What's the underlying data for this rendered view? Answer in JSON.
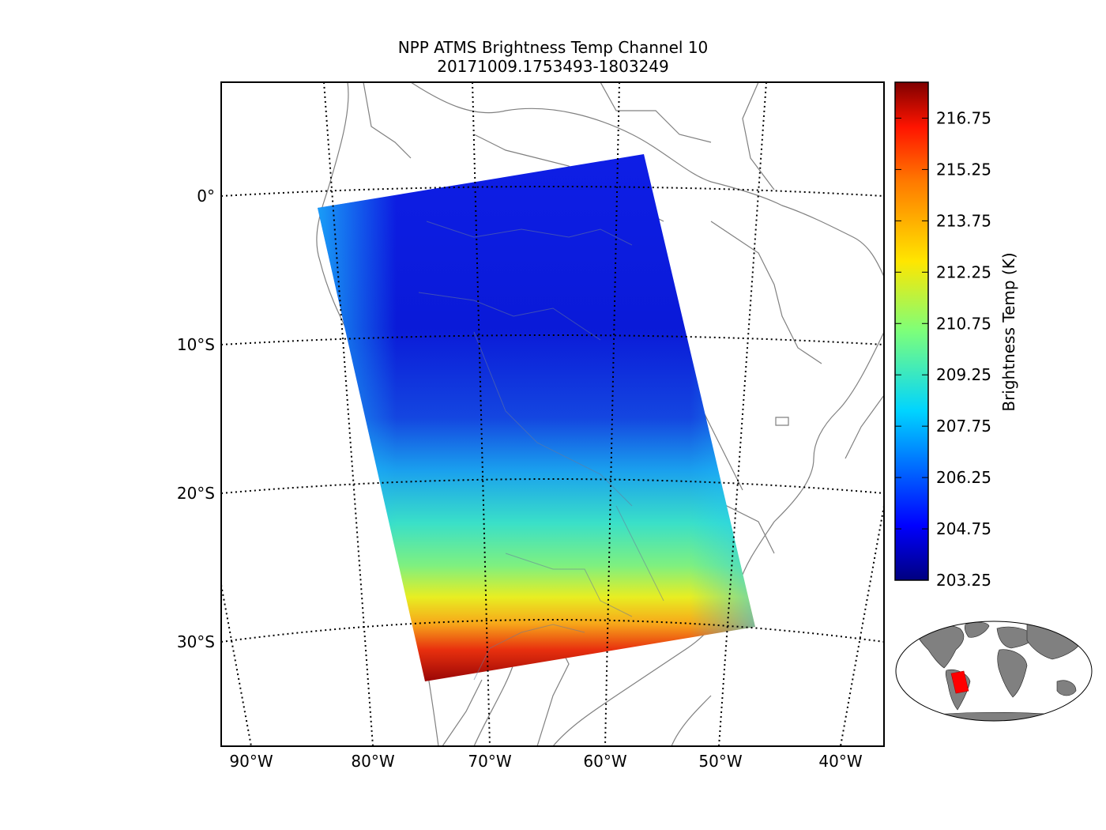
{
  "map": {
    "title_line1": "NPP ATMS Brightness Temp Channel 10",
    "title_line2": "20171009.1753493-1803249",
    "lat_labels": [
      "0°",
      "10°S",
      "20°S",
      "30°S"
    ],
    "lon_labels": [
      "90°W",
      "80°W",
      "70°W",
      "60°W",
      "50°W",
      "40°W"
    ],
    "swath_colors": {
      "cold": "#0a14e0",
      "mid": "#1ea8f0",
      "warm_yellow": "#f4f01a",
      "hot_red": "#a80808"
    },
    "coastline_color": "#808080"
  },
  "colorbar": {
    "label": "Brightness Temp (K)",
    "ticks": [
      "216.75",
      "215.25",
      "213.75",
      "212.25",
      "210.75",
      "209.25",
      "207.75",
      "206.25",
      "204.75",
      "203.25"
    ],
    "min": 203.25,
    "max": 217.8
  },
  "inset": {
    "land_color": "#808080",
    "highlight_color": "#ff0000"
  }
}
